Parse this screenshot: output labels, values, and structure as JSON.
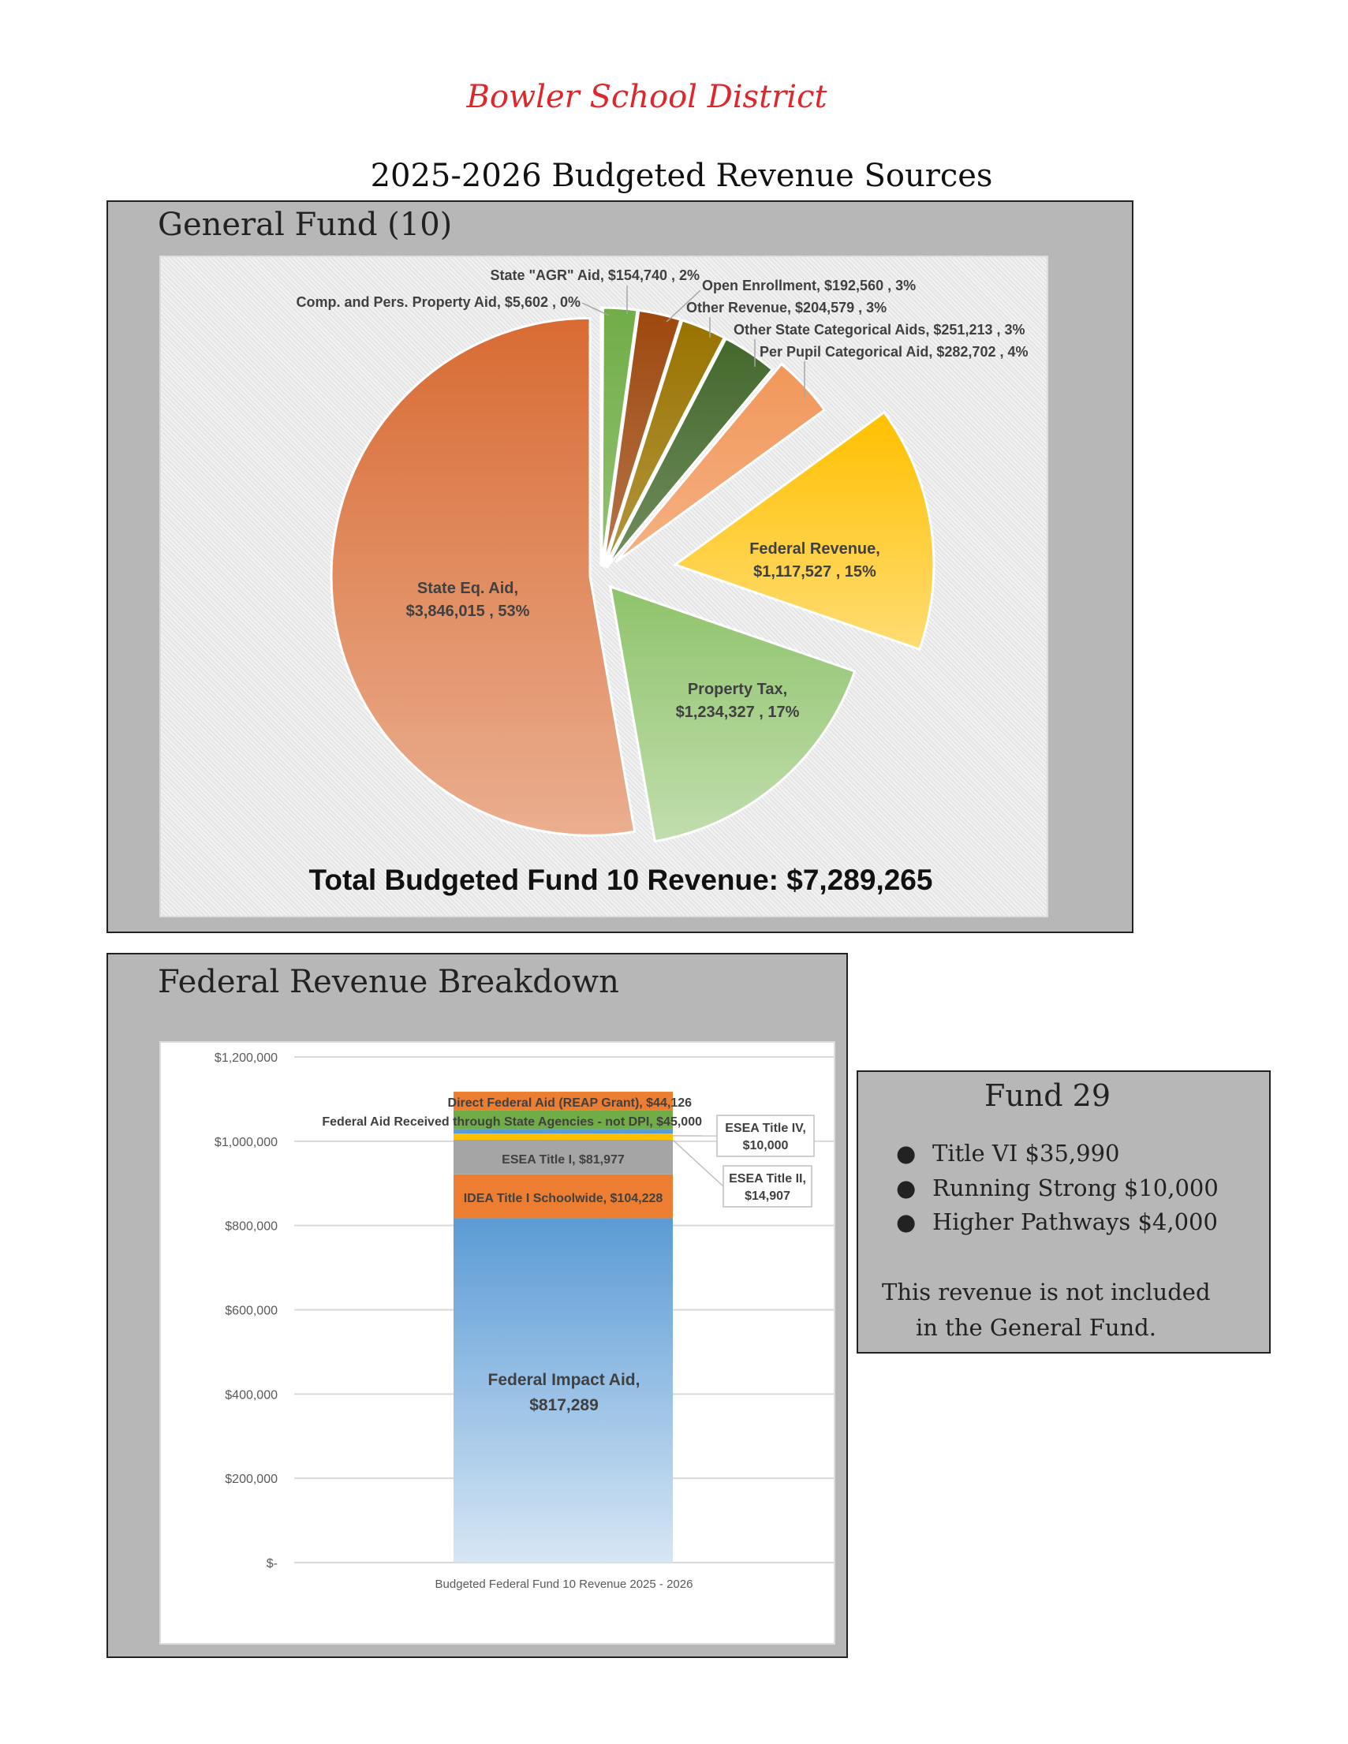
{
  "header": {
    "district": "Bowler School District",
    "title": "2025-2026 Budgeted Revenue Sources"
  },
  "chart_data": [
    {
      "type": "pie",
      "title": "General Fund (10)",
      "total_label": "Total Budgeted Fund 10 Revenue: $7,289,265",
      "slices": [
        {
          "name": "Comp. and Pers. Property Aid",
          "value": 5602,
          "label": "Comp. and Pers. Property Aid,  $5,602 , 0%",
          "color": "#4472c4"
        },
        {
          "name": "State \"AGR\" Aid",
          "value": 154740,
          "label": "State \"AGR\"  Aid,  $154,740 , 2%",
          "color": "#70ad47"
        },
        {
          "name": "Open Enrollment",
          "value": 192560,
          "label": "Open Enrollment,  $192,560 , 3%",
          "color": "#9e480e"
        },
        {
          "name": "Other Revenue",
          "value": 204579,
          "label": "Other Revenue,  $204,579 , 3%",
          "color": "#997300"
        },
        {
          "name": "Other State Categorical Aids",
          "value": 251213,
          "label": "Other State Categorical Aids,  $251,213 , 3%",
          "color": "#43682b"
        },
        {
          "name": "Per Pupil Categorical Aid",
          "value": 282702,
          "label": "Per Pupil Categorical Aid,  $282,702 , 4%",
          "color": "#f1975a"
        },
        {
          "name": "Federal Revenue",
          "value": 1117527,
          "label": "Federal Revenue,",
          "label2": "$1,117,527 , 15%",
          "color": "#ffc000"
        },
        {
          "name": "Property Tax",
          "value": 1234327,
          "label": "Property Tax,",
          "label2": "$1,234,327 , 17%",
          "color": "#8fc36b"
        },
        {
          "name": "State Eq. Aid",
          "value": 3846015,
          "label": "State Eq. Aid,",
          "label2": "$3,846,015 , 53%",
          "color": "#d86b33"
        }
      ]
    },
    {
      "type": "bar",
      "stacked": true,
      "title": "Federal Revenue Breakdown",
      "categories": [
        "Budgeted Federal Fund 10 Revenue 2025 - 2026"
      ],
      "ylim": [
        0,
        1200000
      ],
      "yticks": [
        "$-",
        "$200,000",
        "$400,000",
        "$600,000",
        "$800,000",
        "$1,000,000",
        "$1,200,000"
      ],
      "grid": true,
      "series": [
        {
          "name": "Federal Impact Aid",
          "value": 817289,
          "label": "Federal Impact Aid,",
          "label2": "$817,289",
          "color": "#5b9bd5"
        },
        {
          "name": "IDEA Title I Schoolwide",
          "value": 104228,
          "label": "IDEA Title I Schoolwide,  $104,228",
          "color": "#ed7d31"
        },
        {
          "name": "ESEA Title I",
          "value": 81977,
          "label": "ESEA Title I,  $81,977",
          "color": "#a5a5a5"
        },
        {
          "name": "ESEA Title II",
          "value": 14907,
          "label": "ESEA Title II,",
          "label2": "$14,907",
          "color": "#ffc000"
        },
        {
          "name": "ESEA Title IV",
          "value": 10000,
          "label": "ESEA Title IV,",
          "label2": "$10,000",
          "color": "#5b9bd5"
        },
        {
          "name": "Federal Aid Received through State Agencies - not DPI",
          "value": 45000,
          "label": "Federal Aid Received through State Agencies - not DPI,  $45,000",
          "color": "#70ad47"
        },
        {
          "name": "Direct Federal Aid (REAP Grant)",
          "value": 44126,
          "label": "Direct Federal Aid (REAP Grant),  $44,126",
          "color": "#ed7d31"
        }
      ]
    }
  ],
  "fund29": {
    "title": "Fund 29",
    "items": [
      "Title VI $35,990",
      "Running Strong $10,000",
      "Higher Pathways $4,000"
    ],
    "note_line1": "This revenue is not included",
    "note_line2": "in the General Fund."
  }
}
